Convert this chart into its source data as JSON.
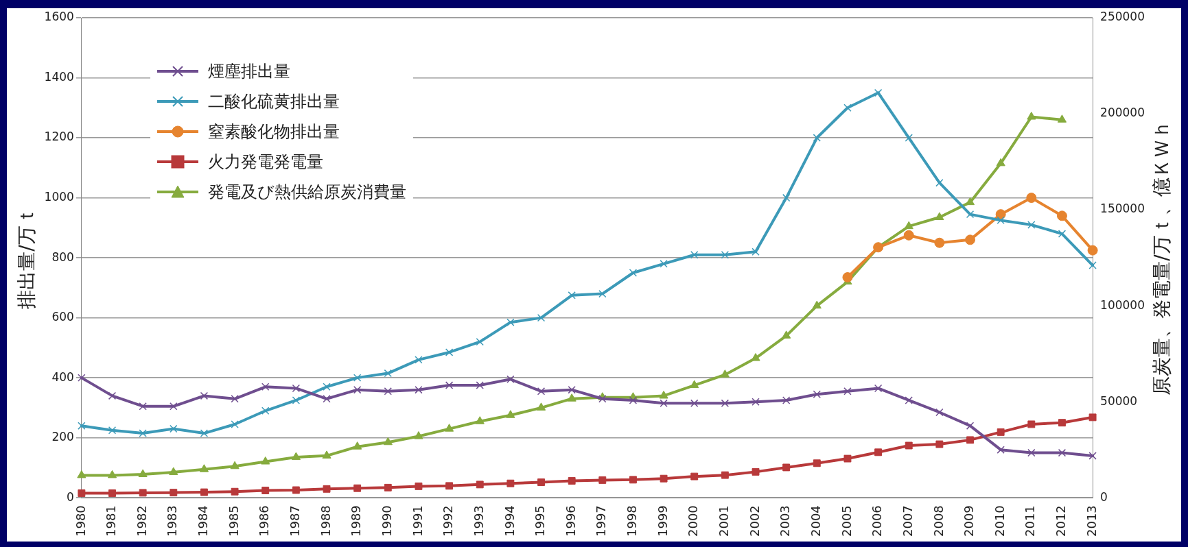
{
  "chart_data": {
    "type": "line",
    "ylabel": "排出量/万ｔ",
    "y2label": "原炭量、発電量/万ｔ、億ＫＷｈ",
    "categories": [
      "1980",
      "1981",
      "1982",
      "1983",
      "1984",
      "1985",
      "1986",
      "1987",
      "1988",
      "1989",
      "1990",
      "1991",
      "1992",
      "1993",
      "1994",
      "1995",
      "1996",
      "1997",
      "1998",
      "1999",
      "2000",
      "2001",
      "2002",
      "2003",
      "2004",
      "2005",
      "2006",
      "2007",
      "2008",
      "2009",
      "2010",
      "2011",
      "2012",
      "2013"
    ],
    "ylim": [
      0,
      1600
    ],
    "yticks": [
      0,
      200,
      400,
      600,
      800,
      1000,
      1200,
      1400,
      1600
    ],
    "y2lim": [
      0,
      250000
    ],
    "y2ticks": [
      0,
      50000,
      100000,
      150000,
      200000,
      250000
    ],
    "grid": "y",
    "legend": "top left",
    "line_style": "solid",
    "series": [
      {
        "name": "煙塵排出量",
        "color": "#6f4e8f",
        "marker": "cross",
        "values": [
          400,
          340,
          305,
          305,
          340,
          330,
          370,
          365,
          330,
          360,
          355,
          360,
          375,
          375,
          395,
          355,
          360,
          330,
          325,
          315,
          315,
          315,
          320,
          325,
          345,
          355,
          365,
          325,
          285,
          240,
          160,
          150,
          150,
          140
        ]
      },
      {
        "name": "二酸化硫黄排出量",
        "color": "#3c9ab8",
        "marker": "cross",
        "values": [
          240,
          225,
          215,
          230,
          215,
          245,
          290,
          325,
          370,
          400,
          415,
          460,
          485,
          520,
          585,
          600,
          675,
          680,
          750,
          780,
          810,
          810,
          820,
          1000,
          1200,
          1300,
          1350,
          1200,
          1050,
          945,
          925,
          910,
          880,
          775
        ]
      },
      {
        "name": "窒素酸化物排出量",
        "color": "#e6842f",
        "marker": "circle",
        "values": [
          null,
          null,
          null,
          null,
          null,
          null,
          null,
          null,
          null,
          null,
          null,
          null,
          null,
          null,
          null,
          null,
          null,
          null,
          null,
          null,
          null,
          null,
          null,
          null,
          null,
          735,
          835,
          875,
          850,
          860,
          945,
          1000,
          940,
          825
        ]
      },
      {
        "name": "火力発電発電量",
        "color": "#b8393a",
        "marker": "square",
        "axis": "y2",
        "values": [
          2400,
          2400,
          2600,
          2700,
          2900,
          3200,
          3800,
          4000,
          4600,
          5000,
          5300,
          6000,
          6200,
          6900,
          7500,
          8100,
          8800,
          9200,
          9400,
          10000,
          11100,
          11800,
          13500,
          15800,
          18000,
          20400,
          23700,
          27200,
          27900,
          30100,
          34200,
          38300,
          39100,
          41900
        ]
      },
      {
        "name": "発電及び熱供給原炭消費量",
        "color": "#86ab3e",
        "marker": "triangle",
        "axis": "y2",
        "values": [
          11700,
          11700,
          12200,
          13300,
          14800,
          16400,
          18800,
          21100,
          21900,
          26600,
          28900,
          32000,
          35900,
          39800,
          43000,
          46900,
          51600,
          52300,
          52300,
          53100,
          58600,
          64100,
          72700,
          84400,
          100000,
          112500,
          130500,
          141400,
          146100,
          153900,
          174200,
          198400,
          196900,
          null
        ]
      }
    ]
  }
}
